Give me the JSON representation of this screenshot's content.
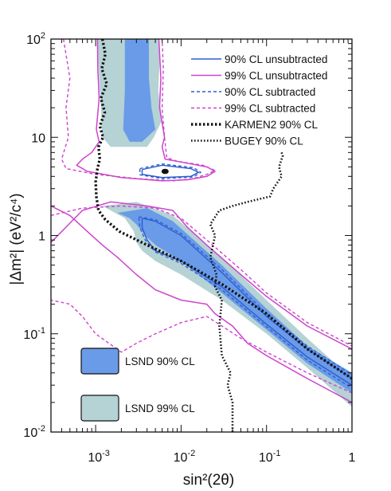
{
  "chart_data": {
    "type": "line",
    "title": "",
    "xlabel": "sin²(2θ)",
    "ylabel": "|Δm²| (eV²/c⁴)",
    "x_scale": "log",
    "y_scale": "log",
    "xlim": [
      0.0003,
      1
    ],
    "ylim": [
      0.01,
      100
    ],
    "x_ticks": [
      {
        "value": 0.001,
        "base": "10",
        "exp": "-3"
      },
      {
        "value": 0.01,
        "base": "10",
        "exp": "-2"
      },
      {
        "value": 0.1,
        "base": "10",
        "exp": "-1"
      },
      {
        "value": 1,
        "base": "1",
        "exp": ""
      }
    ],
    "y_ticks": [
      {
        "value": 100,
        "base": "10",
        "exp": "2"
      },
      {
        "value": 10,
        "base": "10",
        "exp": ""
      },
      {
        "value": 1,
        "base": "1",
        "exp": ""
      },
      {
        "value": 0.1,
        "base": "10",
        "exp": "-1"
      },
      {
        "value": 0.01,
        "base": "10",
        "exp": "-2"
      }
    ],
    "grid": false,
    "legend_position": "top-right",
    "best_fit_point": [
      0.0065,
      4.5
    ],
    "regions": [
      {
        "name": "LSND 99% CL",
        "color": "#b5d2d5",
        "points": [
          [
            0.0012,
            2.0
          ],
          [
            0.003,
            2.2
          ],
          [
            0.008,
            1.6
          ],
          [
            0.03,
            0.6
          ],
          [
            0.1,
            0.22
          ],
          [
            0.3,
            0.09
          ],
          [
            1,
            0.035
          ],
          [
            1,
            0.018
          ],
          [
            0.3,
            0.045
          ],
          [
            0.1,
            0.1
          ],
          [
            0.03,
            0.22
          ],
          [
            0.01,
            0.4
          ],
          [
            0.005,
            0.55
          ],
          [
            0.0035,
            0.7
          ],
          [
            0.003,
            0.85
          ],
          [
            0.0028,
            1.1
          ],
          [
            0.0022,
            1.5
          ],
          [
            0.0012,
            2.0
          ]
        ]
      },
      {
        "name": "LSND 99% CL",
        "color": "#b5d2d5",
        "points": [
          [
            0.00105,
            100
          ],
          [
            0.0054,
            100
          ],
          [
            0.0056,
            60
          ],
          [
            0.0054,
            30
          ],
          [
            0.006,
            15
          ],
          [
            0.0048,
            10
          ],
          [
            0.004,
            8
          ],
          [
            0.0015,
            8
          ],
          [
            0.0012,
            10
          ],
          [
            0.00115,
            20
          ],
          [
            0.0011,
            40
          ],
          [
            0.00105,
            100
          ]
        ]
      },
      {
        "name": "LSND 90% CL",
        "color": "#6a9be8",
        "points": [
          [
            0.0018,
            1.7
          ],
          [
            0.004,
            1.9
          ],
          [
            0.008,
            1.4
          ],
          [
            0.03,
            0.5
          ],
          [
            0.1,
            0.18
          ],
          [
            0.3,
            0.075
          ],
          [
            1,
            0.04
          ],
          [
            1,
            0.025
          ],
          [
            0.3,
            0.05
          ],
          [
            0.1,
            0.11
          ],
          [
            0.03,
            0.26
          ],
          [
            0.01,
            0.55
          ],
          [
            0.005,
            0.8
          ],
          [
            0.0038,
            1.0
          ],
          [
            0.003,
            1.3
          ],
          [
            0.0025,
            1.5
          ],
          [
            0.0018,
            1.7
          ]
        ]
      },
      {
        "name": "LSND 90% CL",
        "color": "#6a9be8",
        "points": [
          [
            0.0022,
            100
          ],
          [
            0.0042,
            100
          ],
          [
            0.0042,
            40
          ],
          [
            0.0045,
            20
          ],
          [
            0.005,
            12
          ],
          [
            0.0035,
            9
          ],
          [
            0.0025,
            9
          ],
          [
            0.0021,
            12
          ],
          [
            0.0022,
            30
          ],
          [
            0.0022,
            100
          ]
        ]
      }
    ],
    "series": [
      {
        "name": "90% CL unsubtracted",
        "color": "#2f5fd0",
        "dash": "solid",
        "paths": [
          [
            [
              0.0035,
              1.5
            ],
            [
              0.005,
              1.4
            ],
            [
              0.01,
              1.0
            ],
            [
              0.03,
              0.42
            ],
            [
              0.1,
              0.15
            ],
            [
              0.3,
              0.07
            ],
            [
              1,
              0.035
            ],
            [
              1,
              0.03
            ],
            [
              0.3,
              0.058
            ],
            [
              0.1,
              0.125
            ],
            [
              0.03,
              0.3
            ],
            [
              0.01,
              0.55
            ],
            [
              0.005,
              0.7
            ],
            [
              0.004,
              0.9
            ],
            [
              0.0035,
              1.2
            ],
            [
              0.0035,
              1.5
            ]
          ],
          [
            [
              0.0035,
              4.7
            ],
            [
              0.006,
              5.2
            ],
            [
              0.013,
              4.8
            ],
            [
              0.016,
              4.4
            ],
            [
              0.013,
              4.0
            ],
            [
              0.006,
              3.9
            ],
            [
              0.0035,
              4.2
            ],
            [
              0.0035,
              4.7
            ]
          ]
        ]
      },
      {
        "name": "99% CL unsubtracted",
        "color": "#cc44cc",
        "dash": "solid",
        "paths": [
          [
            [
              0.0003,
              0.85
            ],
            [
              0.0007,
              1.8
            ],
            [
              0.0015,
              2.2
            ],
            [
              0.004,
              2.0
            ],
            [
              0.008,
              1.8
            ],
            [
              0.012,
              1.2
            ],
            [
              0.02,
              0.8
            ],
            [
              0.05,
              0.4
            ],
            [
              0.1,
              0.24
            ],
            [
              0.3,
              0.12
            ],
            [
              1,
              0.07
            ]
          ],
          [
            [
              1,
              0.02
            ],
            [
              0.3,
              0.035
            ],
            [
              0.1,
              0.06
            ],
            [
              0.06,
              0.08
            ],
            [
              0.04,
              0.12
            ],
            [
              0.025,
              0.16
            ],
            [
              0.02,
              0.2
            ],
            [
              0.01,
              0.22
            ],
            [
              0.005,
              0.28
            ],
            [
              0.003,
              0.4
            ],
            [
              0.0018,
              0.6
            ],
            [
              0.0012,
              0.8
            ],
            [
              0.0008,
              1.1
            ],
            [
              0.0005,
              1.6
            ],
            [
              0.0003,
              2.0
            ]
          ],
          [
            [
              0.00105,
              100
            ],
            [
              0.00106,
              50
            ],
            [
              0.0011,
              25
            ],
            [
              0.00102,
              12
            ],
            [
              0.0011,
              9
            ],
            [
              0.0009,
              7
            ],
            [
              0.0007,
              6
            ],
            [
              0.0006,
              5.2
            ],
            [
              0.0008,
              4.5
            ],
            [
              0.002,
              3.9
            ],
            [
              0.006,
              3.6
            ],
            [
              0.012,
              3.7
            ],
            [
              0.02,
              4.0
            ],
            [
              0.025,
              4.5
            ],
            [
              0.02,
              5.0
            ],
            [
              0.01,
              5.6
            ],
            [
              0.0065,
              6.0
            ],
            [
              0.006,
              8
            ],
            [
              0.0064,
              10
            ],
            [
              0.0056,
              20
            ],
            [
              0.0058,
              40
            ],
            [
              0.0055,
              100
            ]
          ]
        ]
      },
      {
        "name": "90% CL subtracted",
        "color": "#2f5fd0",
        "dash": "dashed",
        "paths": [
          [
            [
              0.0032,
              1.55
            ],
            [
              0.005,
              1.45
            ],
            [
              0.01,
              1.05
            ],
            [
              0.03,
              0.45
            ],
            [
              0.1,
              0.16
            ],
            [
              0.3,
              0.075
            ],
            [
              1,
              0.038
            ],
            [
              1,
              0.028
            ],
            [
              0.3,
              0.054
            ],
            [
              0.1,
              0.118
            ],
            [
              0.03,
              0.28
            ],
            [
              0.01,
              0.52
            ],
            [
              0.005,
              0.68
            ],
            [
              0.0038,
              0.9
            ],
            [
              0.0033,
              1.2
            ],
            [
              0.0032,
              1.55
            ]
          ],
          [
            [
              0.0033,
              4.8
            ],
            [
              0.006,
              5.35
            ],
            [
              0.014,
              4.9
            ],
            [
              0.017,
              4.4
            ],
            [
              0.014,
              3.95
            ],
            [
              0.006,
              3.8
            ],
            [
              0.0033,
              4.15
            ],
            [
              0.0033,
              4.8
            ]
          ]
        ]
      },
      {
        "name": "99% CL subtracted",
        "color": "#cc44cc",
        "dash": "dashed",
        "paths": [
          [
            [
              0.0003,
              1.6
            ],
            [
              0.0007,
              1.9
            ],
            [
              0.002,
              2.0
            ],
            [
              0.005,
              1.9
            ],
            [
              0.01,
              1.5
            ],
            [
              0.02,
              0.9
            ],
            [
              0.05,
              0.45
            ],
            [
              0.1,
              0.26
            ],
            [
              0.3,
              0.13
            ],
            [
              1,
              0.075
            ]
          ],
          [
            [
              1,
              0.025
            ],
            [
              0.3,
              0.04
            ],
            [
              0.1,
              0.065
            ],
            [
              0.05,
              0.09
            ],
            [
              0.03,
              0.12
            ],
            [
              0.02,
              0.15
            ],
            [
              0.01,
              0.13
            ],
            [
              0.005,
              0.1
            ],
            [
              0.003,
              0.08
            ],
            [
              0.002,
              0.065
            ],
            [
              0.001,
              0.1
            ],
            [
              0.0007,
              0.15
            ],
            [
              0.0005,
              0.2
            ],
            [
              0.0003,
              0.22
            ]
          ],
          [
            [
              0.00042,
              100
            ],
            [
              0.0005,
              40
            ],
            [
              0.00045,
              20
            ],
            [
              0.00048,
              10
            ],
            [
              0.0004,
              6
            ],
            [
              0.00045,
              4.8
            ],
            [
              0.001,
              4.2
            ],
            [
              0.003,
              3.8
            ],
            [
              0.008,
              3.6
            ],
            [
              0.014,
              3.8
            ],
            [
              0.02,
              4.2
            ],
            [
              0.025,
              4.6
            ],
            [
              0.018,
              5.2
            ],
            [
              0.009,
              5.7
            ],
            [
              0.0068,
              6.2
            ],
            [
              0.0064,
              10
            ],
            [
              0.006,
              20
            ],
            [
              0.0062,
              50
            ],
            [
              0.006,
              100
            ]
          ]
        ]
      },
      {
        "name": "KARMEN2 90% CL",
        "color": "#111111",
        "dash": "dotted-bold",
        "paths": [
          [
            [
              0.0012,
              100
            ],
            [
              0.0013,
              70
            ],
            [
              0.00118,
              50
            ],
            [
              0.00135,
              35
            ],
            [
              0.00115,
              25
            ],
            [
              0.00128,
              18
            ],
            [
              0.00112,
              13
            ],
            [
              0.00122,
              10
            ],
            [
              0.00108,
              8
            ],
            [
              0.00112,
              6
            ],
            [
              0.00105,
              4.8
            ],
            [
              0.001,
              3.5
            ],
            [
              0.00102,
              2.5
            ],
            [
              0.00108,
              1.8
            ],
            [
              0.0013,
              1.45
            ],
            [
              0.0019,
              1.1
            ],
            [
              0.004,
              0.8
            ],
            [
              0.01,
              0.55
            ],
            [
              0.03,
              0.32
            ],
            [
              0.1,
              0.16
            ],
            [
              0.3,
              0.07
            ],
            [
              1,
              0.035
            ]
          ]
        ]
      },
      {
        "name": "BUGEY 90% CL",
        "color": "#111111",
        "dash": "dotted",
        "paths": [
          [
            [
              0.15,
              7.0
            ],
            [
              0.155,
              6.5
            ],
            [
              0.14,
              5.0
            ],
            [
              0.15,
              4.0
            ],
            [
              0.12,
              3.0
            ],
            [
              0.11,
              2.5
            ],
            [
              0.06,
              2.2
            ],
            [
              0.04,
              2.0
            ],
            [
              0.028,
              1.8
            ],
            [
              0.022,
              1.3
            ],
            [
              0.025,
              1.0
            ],
            [
              0.022,
              0.6
            ],
            [
              0.026,
              0.4
            ],
            [
              0.025,
              0.3
            ],
            [
              0.03,
              0.22
            ],
            [
              0.028,
              0.12
            ],
            [
              0.03,
              0.06
            ],
            [
              0.038,
              0.04
            ],
            [
              0.035,
              0.03
            ],
            [
              0.04,
              0.02
            ],
            [
              0.04,
              0.01
            ]
          ]
        ]
      }
    ]
  },
  "legend": {
    "lines": [
      {
        "label": "90% CL unsubtracted",
        "color": "#2f5fd0",
        "dash": "solid"
      },
      {
        "label": "99% CL unsubtracted",
        "color": "#cc44cc",
        "dash": "solid"
      },
      {
        "label": "90% CL subtracted",
        "color": "#2f5fd0",
        "dash": "dashed"
      },
      {
        "label": "99% CL subtracted",
        "color": "#cc44cc",
        "dash": "dashed"
      },
      {
        "label": "KARMEN2 90% CL",
        "color": "#111111",
        "dash": "dotted-bold"
      },
      {
        "label": "BUGEY 90% CL",
        "color": "#111111",
        "dash": "dotted"
      }
    ],
    "boxes": [
      {
        "label": "LSND 90% CL",
        "color": "#6a9be8"
      },
      {
        "label": "LSND 99% CL",
        "color": "#b5d2d5"
      }
    ]
  }
}
